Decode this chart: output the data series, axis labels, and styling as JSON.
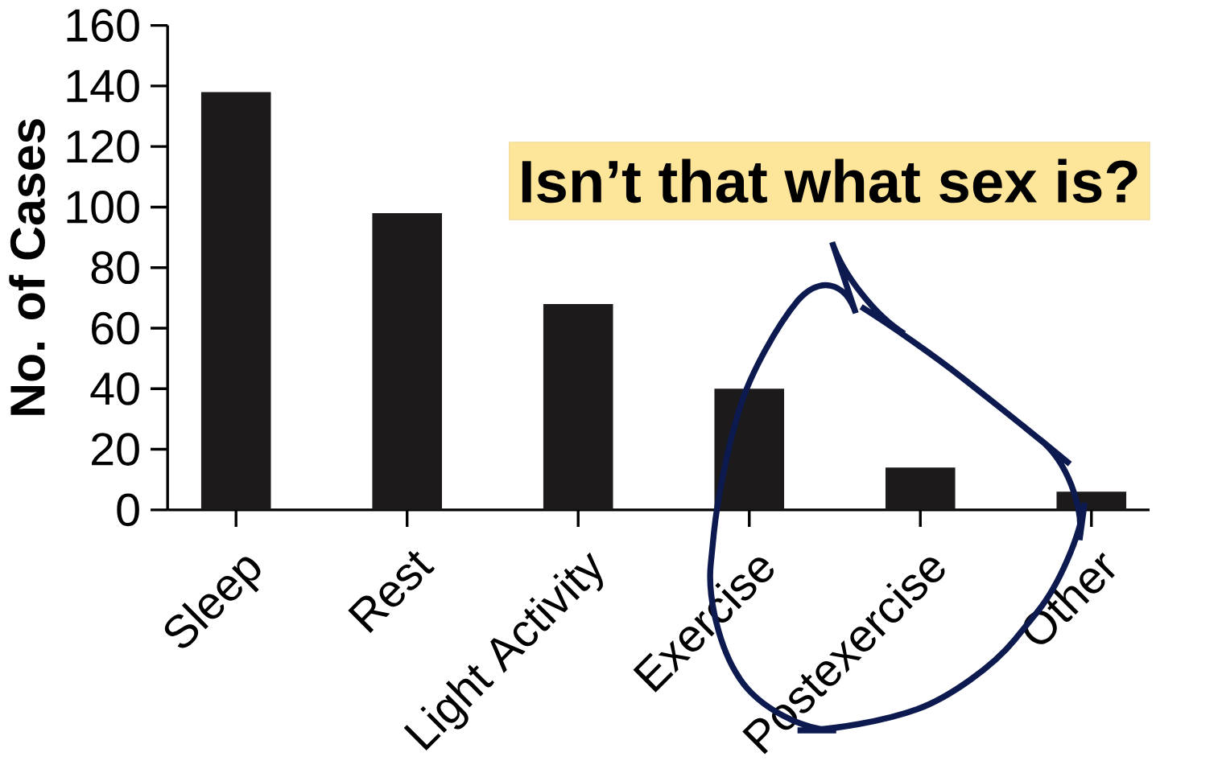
{
  "chart_data": {
    "type": "bar",
    "ylabel": "No. of Cases",
    "categories": [
      "Sleep",
      "Rest",
      "Light Activity",
      "Exercise",
      "Postexercise",
      "Other"
    ],
    "values": [
      138,
      98,
      68,
      40,
      14,
      6
    ],
    "color": "#1c1a1a",
    "ylim": [
      0,
      160
    ],
    "yticks": [
      0,
      20,
      40,
      60,
      80,
      100,
      120,
      140,
      160
    ],
    "grid": false,
    "annotations": [
      "Isn’t that what sex is?"
    ]
  }
}
